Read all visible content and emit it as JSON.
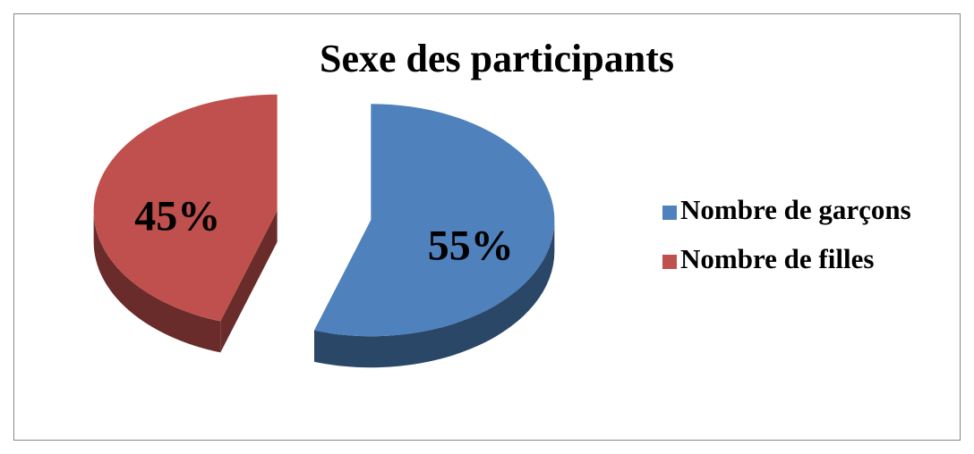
{
  "chart_data": {
    "type": "pie",
    "title": "Sexe des participants",
    "categories": [
      "Nombre de garçons",
      "Nombre de filles"
    ],
    "values": [
      55,
      45
    ],
    "value_labels": [
      "55%",
      "45%"
    ],
    "colors": [
      "#4f81bd",
      "#c0504d"
    ],
    "legend": "right"
  }
}
